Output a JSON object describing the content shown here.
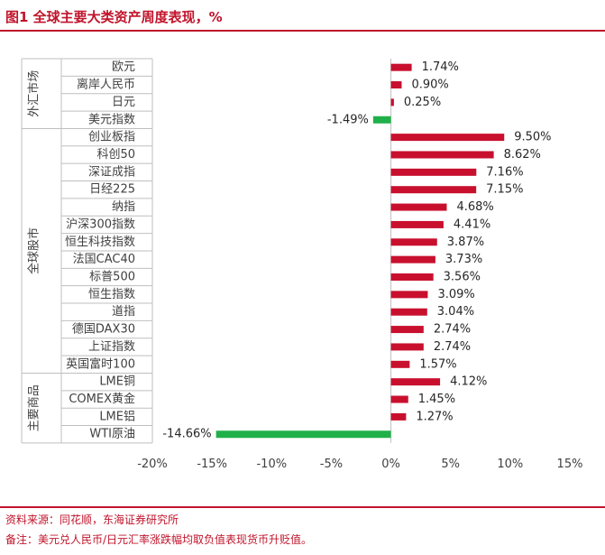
{
  "figure": {
    "title": "图1  全球主要大类资产周度表现，%",
    "source": "资料来源：同花顺，东海证券研究所",
    "note": "备注：美元兑人民币/日元汇率涨跌幅均取负值表现货币升贬值。"
  },
  "chart_data": {
    "type": "bar",
    "orientation": "horizontal",
    "xlim": [
      -20,
      15
    ],
    "xticks": [
      -20,
      -15,
      -10,
      -5,
      0,
      5,
      10,
      15
    ],
    "xtick_labels": [
      "-20%",
      "-15%",
      "-10%",
      "-5%",
      "0%",
      "5%",
      "10%",
      "15%"
    ],
    "positive_color": "#c8102e",
    "negative_color": "#1fb04a",
    "groups": [
      {
        "label": "外汇市场",
        "start": 0,
        "count": 4
      },
      {
        "label": "全球股市",
        "start": 4,
        "count": 14
      },
      {
        "label": "主要商品",
        "start": 18,
        "count": 4
      }
    ],
    "categories": [
      "欧元",
      "离岸人民币",
      "日元",
      "美元指数",
      "创业板指",
      "科创50",
      "深证成指",
      "日经225",
      "纳指",
      "沪深300指数",
      "恒生科技指数",
      "法国CAC40",
      "标普500",
      "恒生指数",
      "道指",
      "德国DAX30",
      "上证指数",
      "英国富时100",
      "LME铜",
      "COMEX黄金",
      "LME铝",
      "WTI原油"
    ],
    "values": [
      1.74,
      0.9,
      0.25,
      -1.49,
      9.5,
      8.62,
      7.16,
      7.15,
      4.68,
      4.41,
      3.87,
      3.73,
      3.56,
      3.09,
      3.04,
      2.74,
      2.74,
      1.57,
      4.12,
      1.45,
      1.27,
      -14.66
    ],
    "value_labels": [
      "1.74%",
      "0.90%",
      "0.25%",
      "-1.49%",
      "9.50%",
      "8.62%",
      "7.16%",
      "7.15%",
      "4.68%",
      "4.41%",
      "3.87%",
      "3.73%",
      "3.56%",
      "3.09%",
      "3.04%",
      "2.74%",
      "2.74%",
      "1.57%",
      "4.12%",
      "1.45%",
      "1.27%",
      "-14.66%"
    ]
  }
}
